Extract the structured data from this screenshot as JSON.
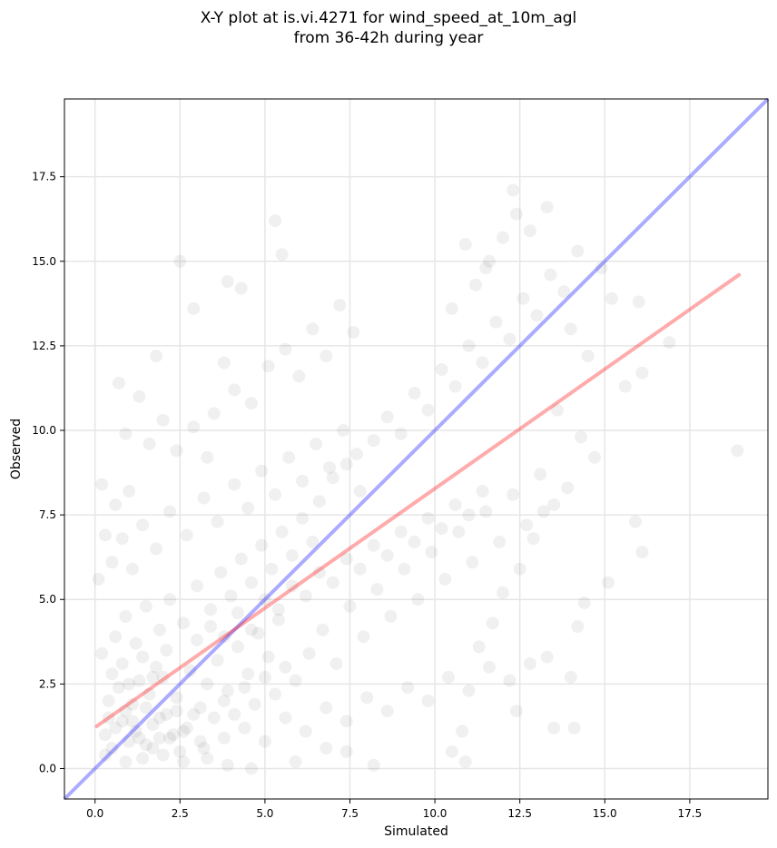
{
  "chart_data": {
    "type": "scatter",
    "title": "X-Y plot at is.vi.4271 for wind_speed_at_10m_agl",
    "subtitle": "from 36-42h during year",
    "xlabel": "Simulated",
    "ylabel": "Observed",
    "xlim": [
      -0.9,
      19.8
    ],
    "ylim": [
      -0.9,
      19.8
    ],
    "xticks": [
      0.0,
      2.5,
      5.0,
      7.5,
      10.0,
      12.5,
      15.0,
      17.5
    ],
    "yticks": [
      0.0,
      2.5,
      5.0,
      7.5,
      10.0,
      12.5,
      15.0,
      17.5
    ],
    "xtick_labels": [
      "0.0",
      "2.5",
      "5.0",
      "7.5",
      "10.0",
      "12.5",
      "15.0",
      "17.5"
    ],
    "ytick_labels": [
      "0.0",
      "2.5",
      "5.0",
      "7.5",
      "10.0",
      "12.5",
      "15.0",
      "17.5"
    ],
    "grid": true,
    "point_color": "#000000",
    "point_alpha": 0.06,
    "identity_line": {
      "x": [
        -0.9,
        19.8
      ],
      "y": [
        -0.9,
        19.8
      ],
      "color": "#0000ff"
    },
    "regression_line": {
      "x": [
        0.05,
        18.95
      ],
      "y": [
        1.25,
        14.6
      ],
      "color": "#ff0000"
    },
    "points": [
      [
        0.3,
        1.0
      ],
      [
        0.5,
        0.6
      ],
      [
        0.8,
        1.4
      ],
      [
        1.0,
        0.8
      ],
      [
        1.2,
        1.1
      ],
      [
        1.5,
        0.7
      ],
      [
        1.7,
        1.3
      ],
      [
        1.9,
        0.9
      ],
      [
        2.1,
        1.6
      ],
      [
        2.3,
        1.0
      ],
      [
        2.5,
        0.5
      ],
      [
        2.7,
        1.2
      ],
      [
        0.4,
        2.0
      ],
      [
        0.7,
        2.4
      ],
      [
        1.1,
        1.9
      ],
      [
        1.3,
        2.6
      ],
      [
        1.6,
        2.2
      ],
      [
        1.8,
        3.0
      ],
      [
        2.0,
        2.7
      ],
      [
        2.4,
        2.1
      ],
      [
        2.8,
        2.9
      ],
      [
        3.1,
        1.8
      ],
      [
        3.3,
        2.5
      ],
      [
        3.6,
        3.2
      ],
      [
        3.9,
        2.3
      ],
      [
        4.2,
        3.6
      ],
      [
        4.5,
        2.8
      ],
      [
        4.8,
        4.0
      ],
      [
        5.1,
        3.3
      ],
      [
        5.4,
        4.4
      ],
      [
        0.2,
        3.4
      ],
      [
        0.6,
        3.9
      ],
      [
        0.9,
        4.5
      ],
      [
        1.2,
        3.7
      ],
      [
        1.5,
        4.8
      ],
      [
        1.9,
        4.1
      ],
      [
        2.2,
        5.0
      ],
      [
        2.6,
        4.3
      ],
      [
        3.0,
        5.4
      ],
      [
        3.4,
        4.7
      ],
      [
        3.7,
        5.8
      ],
      [
        4.0,
        5.1
      ],
      [
        4.3,
        6.2
      ],
      [
        4.6,
        5.5
      ],
      [
        4.9,
        6.6
      ],
      [
        5.2,
        5.9
      ],
      [
        5.5,
        7.0
      ],
      [
        5.8,
        6.3
      ],
      [
        6.1,
        7.4
      ],
      [
        6.4,
        6.7
      ],
      [
        0.1,
        5.6
      ],
      [
        0.5,
        6.1
      ],
      [
        0.8,
        6.8
      ],
      [
        1.1,
        5.9
      ],
      [
        1.4,
        7.2
      ],
      [
        1.8,
        6.5
      ],
      [
        2.2,
        7.6
      ],
      [
        2.7,
        6.9
      ],
      [
        3.2,
        8.0
      ],
      [
        3.6,
        7.3
      ],
      [
        4.1,
        8.4
      ],
      [
        4.5,
        7.7
      ],
      [
        4.9,
        8.8
      ],
      [
        5.3,
        8.1
      ],
      [
        5.7,
        9.2
      ],
      [
        6.1,
        8.5
      ],
      [
        6.5,
        9.6
      ],
      [
        6.9,
        8.9
      ],
      [
        7.3,
        10.0
      ],
      [
        7.7,
        9.3
      ],
      [
        0.9,
        0.2
      ],
      [
        1.4,
        0.3
      ],
      [
        2.0,
        0.4
      ],
      [
        2.6,
        0.2
      ],
      [
        3.2,
        0.6
      ],
      [
        3.8,
        0.9
      ],
      [
        4.4,
        1.2
      ],
      [
        5.0,
        0.8
      ],
      [
        5.6,
        1.5
      ],
      [
        6.2,
        1.1
      ],
      [
        6.8,
        1.8
      ],
      [
        7.4,
        1.4
      ],
      [
        8.0,
        2.1
      ],
      [
        8.6,
        1.7
      ],
      [
        9.2,
        2.4
      ],
      [
        9.8,
        2.0
      ],
      [
        10.4,
        2.7
      ],
      [
        11.0,
        2.3
      ],
      [
        11.6,
        3.0
      ],
      [
        12.2,
        2.6
      ],
      [
        5.9,
        2.6
      ],
      [
        6.3,
        3.4
      ],
      [
        6.7,
        4.1
      ],
      [
        7.1,
        3.1
      ],
      [
        7.5,
        4.8
      ],
      [
        7.9,
        3.9
      ],
      [
        8.3,
        5.3
      ],
      [
        8.7,
        4.5
      ],
      [
        9.1,
        5.9
      ],
      [
        9.5,
        5.0
      ],
      [
        9.9,
        6.4
      ],
      [
        10.3,
        5.6
      ],
      [
        10.7,
        7.0
      ],
      [
        11.1,
        6.1
      ],
      [
        11.5,
        7.6
      ],
      [
        11.9,
        6.7
      ],
      [
        12.3,
        8.1
      ],
      [
        12.7,
        7.2
      ],
      [
        13.1,
        8.7
      ],
      [
        13.5,
        7.8
      ],
      [
        6.6,
        7.9
      ],
      [
        7.0,
        8.6
      ],
      [
        7.4,
        9.0
      ],
      [
        7.8,
        8.2
      ],
      [
        8.2,
        9.7
      ],
      [
        8.6,
        10.4
      ],
      [
        9.0,
        9.9
      ],
      [
        9.4,
        11.1
      ],
      [
        9.8,
        10.6
      ],
      [
        10.2,
        11.8
      ],
      [
        10.6,
        11.3
      ],
      [
        11.0,
        12.5
      ],
      [
        11.4,
        12.0
      ],
      [
        11.8,
        13.2
      ],
      [
        12.2,
        12.7
      ],
      [
        12.6,
        13.9
      ],
      [
        13.0,
        13.4
      ],
      [
        13.4,
        14.6
      ],
      [
        13.8,
        14.1
      ],
      [
        14.2,
        15.3
      ],
      [
        10.5,
        13.6
      ],
      [
        11.2,
        14.3
      ],
      [
        11.6,
        15.0
      ],
      [
        12.0,
        15.7
      ],
      [
        12.4,
        16.4
      ],
      [
        12.8,
        15.9
      ],
      [
        12.3,
        17.1
      ],
      [
        13.3,
        16.6
      ],
      [
        10.9,
        15.5
      ],
      [
        11.5,
        14.8
      ],
      [
        3.5,
        10.5
      ],
      [
        4.1,
        11.2
      ],
      [
        4.6,
        10.8
      ],
      [
        5.1,
        11.9
      ],
      [
        5.6,
        12.4
      ],
      [
        6.0,
        11.6
      ],
      [
        6.4,
        13.0
      ],
      [
        6.8,
        12.2
      ],
      [
        7.2,
        13.7
      ],
      [
        7.6,
        12.9
      ],
      [
        2.4,
        9.4
      ],
      [
        2.9,
        10.1
      ],
      [
        3.3,
        9.2
      ],
      [
        3.8,
        12.0
      ],
      [
        4.3,
        14.2
      ],
      [
        3.9,
        14.4
      ],
      [
        2.9,
        13.6
      ],
      [
        2.5,
        15.0
      ],
      [
        5.3,
        16.2
      ],
      [
        5.5,
        15.2
      ],
      [
        1.0,
        8.2
      ],
      [
        1.6,
        9.6
      ],
      [
        2.0,
        10.3
      ],
      [
        1.3,
        11.0
      ],
      [
        0.7,
        11.4
      ],
      [
        1.8,
        12.2
      ],
      [
        0.3,
        6.9
      ],
      [
        0.6,
        7.8
      ],
      [
        0.2,
        8.4
      ],
      [
        0.9,
        9.9
      ],
      [
        14.0,
        13.0
      ],
      [
        14.5,
        12.2
      ],
      [
        14.9,
        14.8
      ],
      [
        15.2,
        13.9
      ],
      [
        15.6,
        11.3
      ],
      [
        16.0,
        13.8
      ],
      [
        16.1,
        11.7
      ],
      [
        16.9,
        12.6
      ],
      [
        15.9,
        7.3
      ],
      [
        16.1,
        6.4
      ],
      [
        14.3,
        9.8
      ],
      [
        14.7,
        9.2
      ],
      [
        13.9,
        8.3
      ],
      [
        13.6,
        10.6
      ],
      [
        13.2,
        7.6
      ],
      [
        12.9,
        6.8
      ],
      [
        12.5,
        5.9
      ],
      [
        12.0,
        5.2
      ],
      [
        11.7,
        4.3
      ],
      [
        11.3,
        3.6
      ],
      [
        14.4,
        4.9
      ],
      [
        14.2,
        4.2
      ],
      [
        13.5,
        1.2
      ],
      [
        14.1,
        1.2
      ],
      [
        14.0,
        2.7
      ],
      [
        12.8,
        3.1
      ],
      [
        13.3,
        3.3
      ],
      [
        12.4,
        1.7
      ],
      [
        10.8,
        1.1
      ],
      [
        10.9,
        0.2
      ],
      [
        10.5,
        0.5
      ],
      [
        8.2,
        0.1
      ],
      [
        7.4,
        0.5
      ],
      [
        6.8,
        0.6
      ],
      [
        5.9,
        0.2
      ],
      [
        4.6,
        0.0
      ],
      [
        3.9,
        0.1
      ],
      [
        3.3,
        0.3
      ],
      [
        15.1,
        5.5
      ],
      [
        18.9,
        9.4
      ],
      [
        0.4,
        1.5
      ],
      [
        0.6,
        1.2
      ],
      [
        0.9,
        1.7
      ],
      [
        1.1,
        1.4
      ],
      [
        1.3,
        0.9
      ],
      [
        1.5,
        1.8
      ],
      [
        1.7,
        0.6
      ],
      [
        1.9,
        1.5
      ],
      [
        2.2,
        0.9
      ],
      [
        2.4,
        1.7
      ],
      [
        2.6,
        1.1
      ],
      [
        2.9,
        1.6
      ],
      [
        3.1,
        0.8
      ],
      [
        0.3,
        0.4
      ],
      [
        0.5,
        2.8
      ],
      [
        0.8,
        3.1
      ],
      [
        1.0,
        2.5
      ],
      [
        1.4,
        3.3
      ],
      [
        1.7,
        2.7
      ],
      [
        2.1,
        3.5
      ],
      [
        3.5,
        1.5
      ],
      [
        3.8,
        2.0
      ],
      [
        4.1,
        1.6
      ],
      [
        4.4,
        2.4
      ],
      [
        4.7,
        1.9
      ],
      [
        5.0,
        2.7
      ],
      [
        5.3,
        2.2
      ],
      [
        5.6,
        3.0
      ],
      [
        3.0,
        3.8
      ],
      [
        3.4,
        4.2
      ],
      [
        3.8,
        3.9
      ],
      [
        4.2,
        4.6
      ],
      [
        4.6,
        4.1
      ],
      [
        5.0,
        5.0
      ],
      [
        5.4,
        4.7
      ],
      [
        5.8,
        5.4
      ],
      [
        6.2,
        5.1
      ],
      [
        6.6,
        5.8
      ],
      [
        7.0,
        5.5
      ],
      [
        7.4,
        6.2
      ],
      [
        7.8,
        5.9
      ],
      [
        8.2,
        6.6
      ],
      [
        8.6,
        6.3
      ],
      [
        9.0,
        7.0
      ],
      [
        9.4,
        6.7
      ],
      [
        9.8,
        7.4
      ],
      [
        10.2,
        7.1
      ],
      [
        10.6,
        7.8
      ],
      [
        11.0,
        7.5
      ],
      [
        11.4,
        8.2
      ]
    ]
  }
}
